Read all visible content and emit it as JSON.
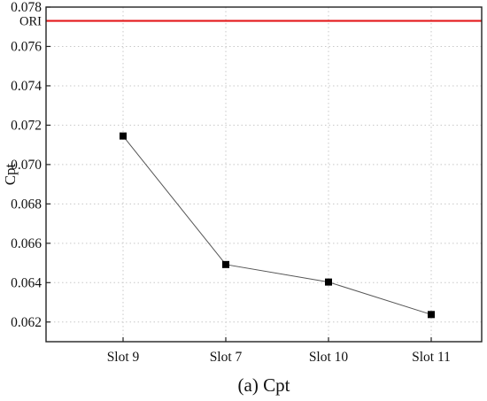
{
  "chart_data": {
    "type": "line",
    "categories": [
      "Slot 9",
      "Slot 7",
      "Slot 10",
      "Slot 11"
    ],
    "series": [
      {
        "values": [
          0.07145,
          0.06492,
          0.06403,
          0.06238
        ],
        "color": "#000000",
        "line_color": "#555555",
        "marker": "square"
      }
    ],
    "reference_line": {
      "label": "ORI",
      "value": 0.0773,
      "color": "#e41a1c"
    },
    "ylabel": "Cpt",
    "xlabel": "",
    "caption": "(a) Cpt",
    "ylim": [
      0.061,
      0.078
    ],
    "yticks": [
      "0.062",
      "0.064",
      "0.066",
      "0.068",
      "0.070",
      "0.072",
      "0.074",
      "0.076",
      "0.078"
    ],
    "grid": true
  }
}
